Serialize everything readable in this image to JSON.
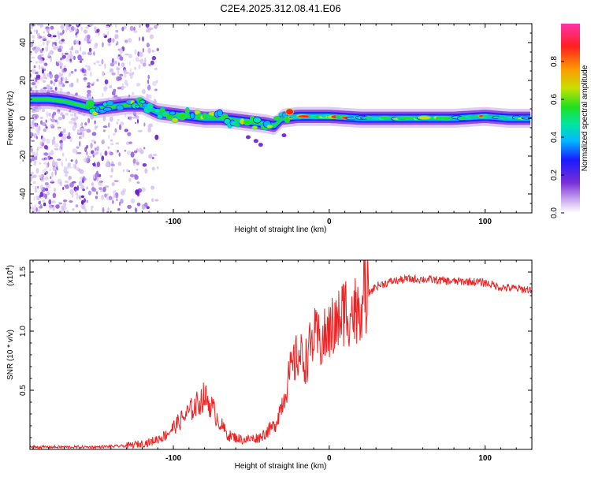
{
  "title": "C2E4.2025.312.08.41.E06",
  "chart_data": [
    {
      "type": "heatmap",
      "xlabel": "Height of straight line (km)",
      "ylabel": "Frequency (Hz)",
      "xlim": [
        -192,
        130
      ],
      "ylim": [
        -50,
        50
      ],
      "xticks": [
        -100,
        0,
        100
      ],
      "yticks": [
        -40,
        -20,
        0,
        20,
        40
      ],
      "colorbar": {
        "label": "Normalized spectral amplitude",
        "range": [
          0,
          1
        ],
        "ticks": [
          "0.0",
          "0.2",
          "0.4",
          "0.6",
          "0.8"
        ],
        "colors": [
          "#ffffff",
          "#c9a8f0",
          "#7a2fd6",
          "#1a1aff",
          "#00b8ff",
          "#00e6a0",
          "#20e020",
          "#c8e000",
          "#ff9900",
          "#ff2020",
          "#ff33aa"
        ]
      },
      "ridge": {
        "x": [
          -192,
          -180,
          -170,
          -160,
          -150,
          -140,
          -130,
          -120,
          -110,
          -100,
          -90,
          -80,
          -70,
          -60,
          -50,
          -40,
          -35,
          -30,
          -20,
          -10,
          0,
          20,
          40,
          60,
          80,
          100,
          115,
          130
        ],
        "freq_hz": [
          10,
          10,
          9,
          7,
          5,
          6,
          7,
          7,
          3,
          2,
          1,
          0,
          0,
          -1,
          -2,
          -3,
          -4,
          0,
          1,
          1,
          1,
          0,
          0,
          0,
          0,
          1,
          0,
          0
        ]
      },
      "noise_region_x": [
        -192,
        -110
      ]
    },
    {
      "type": "line",
      "xlabel": "Height of straight line (km)",
      "ylabel": "SNR (10 * v/v)",
      "yscale_label": "(x10",
      "yscale_exp": "4",
      "xlim": [
        -192,
        130
      ],
      "ylim": [
        0,
        1.6
      ],
      "xticks": [
        -100,
        0,
        100
      ],
      "yticks": [
        "0.5",
        "1.0",
        "1.5"
      ],
      "color": "#ee2222",
      "series": [
        {
          "name": "SNR",
          "x": [
            -192,
            -150,
            -130,
            -115,
            -105,
            -95,
            -85,
            -80,
            -75,
            -70,
            -65,
            -55,
            -45,
            -35,
            -30,
            -25,
            -20,
            -15,
            -10,
            -5,
            0,
            5,
            10,
            15,
            20,
            30,
            40,
            50,
            60,
            70,
            80,
            90,
            100,
            110,
            120,
            130
          ],
          "y": [
            0.02,
            0.02,
            0.03,
            0.06,
            0.12,
            0.25,
            0.38,
            0.45,
            0.35,
            0.22,
            0.12,
            0.08,
            0.1,
            0.2,
            0.4,
            0.65,
            0.8,
            0.75,
            0.95,
            0.9,
            1.0,
            1.05,
            1.2,
            1.15,
            1.25,
            1.38,
            1.42,
            1.44,
            1.44,
            1.43,
            1.42,
            1.42,
            1.41,
            1.37,
            1.36,
            1.35
          ]
        }
      ]
    }
  ]
}
